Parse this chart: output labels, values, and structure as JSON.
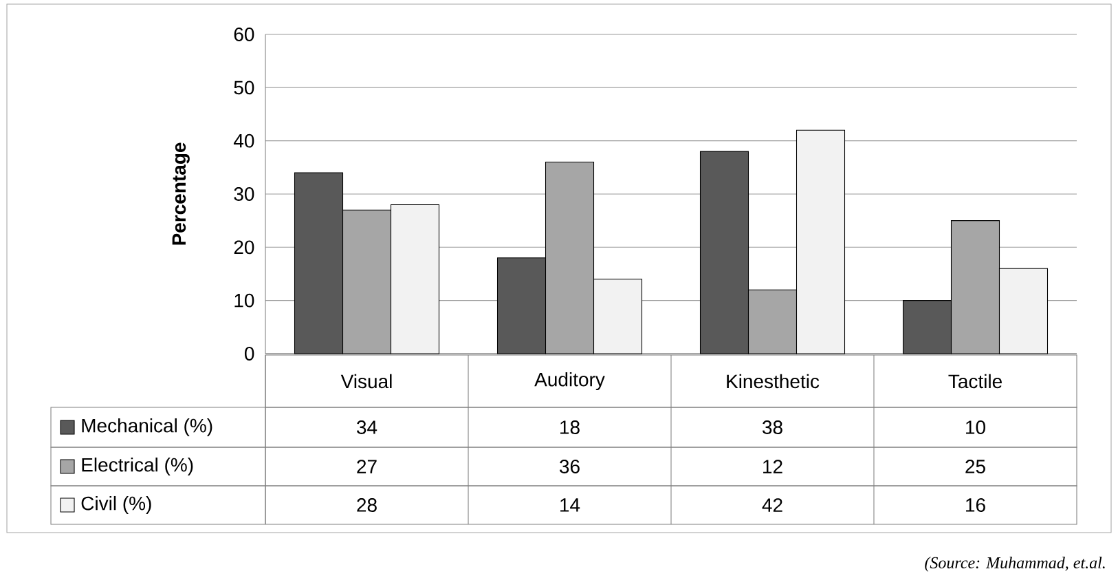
{
  "chart_data": {
    "type": "bar",
    "ylabel": "Percentage",
    "categories": [
      "Visual",
      "Auditory",
      "Kinesthetic",
      "Tactile"
    ],
    "series": [
      {
        "name": "Mechanical (%)",
        "color": "#595959",
        "values": [
          34,
          18,
          38,
          10
        ]
      },
      {
        "name": "Electrical (%)",
        "color": "#a6a6a6",
        "values": [
          27,
          36,
          12,
          25
        ]
      },
      {
        "name": "Civil (%)",
        "color": "#f2f2f2",
        "values": [
          28,
          14,
          42,
          16
        ]
      }
    ],
    "ylim": [
      0,
      60
    ],
    "yticks": [
      0,
      10,
      20,
      30,
      40,
      50,
      60
    ],
    "grid": "y",
    "legend": "bottom",
    "data_labels": true,
    "annotations": [
      "(Source: Muhammad, et.al."
    ]
  }
}
